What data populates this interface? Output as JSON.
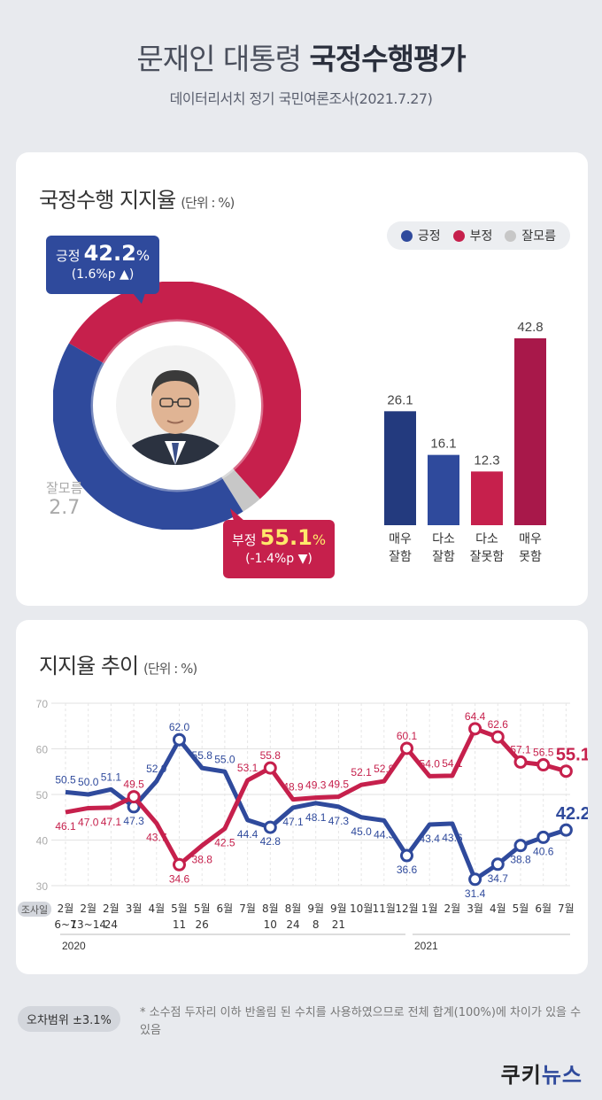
{
  "header": {
    "title_light": "문재인 대통령 ",
    "title_bold": "국정수행평가",
    "subtitle": "데이터리서치 정기 국민여론조사(2021.7.27)"
  },
  "approval_card": {
    "title": "국정수행 지지율",
    "unit": "(단위 : %)",
    "legend": [
      {
        "label": "긍정",
        "color": "#2f4a9c"
      },
      {
        "label": "부정",
        "color": "#c6204c"
      },
      {
        "label": "잘모름",
        "color": "#c7c7c7"
      }
    ],
    "positive": {
      "label": "긍정",
      "value": "42.2",
      "pct": "%",
      "change": "(1.6%p ▲)"
    },
    "negative": {
      "label": "부정",
      "value": "55.1",
      "pct": "%",
      "change": "(-1.4%p ▼)"
    },
    "dontknow": {
      "label": "잘모름",
      "value": "2.7"
    }
  },
  "trend_card": {
    "title": "지지율 추이",
    "unit": "(단위 : %)",
    "survey_label": "조사일"
  },
  "chart_data": [
    {
      "type": "pie",
      "labels": [
        "긍정",
        "부정",
        "잘모름"
      ],
      "values": [
        42.2,
        55.1,
        2.7
      ],
      "colors": [
        "#2f4a9c",
        "#c6204c",
        "#c7c7c7"
      ]
    },
    {
      "type": "bar",
      "categories": [
        "매우\n잘함",
        "다소\n잘함",
        "다소\n잘못함",
        "매우\n못함"
      ],
      "category_lines": [
        [
          "매우",
          "잘함"
        ],
        [
          "다소",
          "잘함"
        ],
        [
          "다소",
          "잘못함"
        ],
        [
          "매우",
          "못함"
        ]
      ],
      "values": [
        26.1,
        16.1,
        12.3,
        42.8
      ],
      "colors": [
        "#233a7e",
        "#2f4a9c",
        "#c6204c",
        "#a8184a"
      ]
    },
    {
      "type": "line",
      "x_top": [
        "2월",
        "2월",
        "2월",
        "3월",
        "4월",
        "5월",
        "5월",
        "6월",
        "7월",
        "8월",
        "8월",
        "9월",
        "9월",
        "10월",
        "11월",
        "12월",
        "1월",
        "2월",
        "3월",
        "4월",
        "5월",
        "6월",
        "7월"
      ],
      "x_bottom": [
        "6~7",
        "13~14",
        "24",
        "",
        "",
        "11",
        "26",
        "",
        "",
        "10",
        "24",
        "8",
        "21",
        "",
        "",
        "",
        "",
        "",
        "",
        "",
        "",
        "",
        ""
      ],
      "year_labels": [
        "2020",
        "2021"
      ],
      "yticks": [
        30,
        40,
        50,
        60,
        70
      ],
      "ylim": [
        30,
        70
      ],
      "series": [
        {
          "name": "긍정",
          "color": "#2f4a9c",
          "values": [
            50.5,
            50.0,
            51.1,
            47.3,
            52.9,
            62.0,
            55.8,
            55.0,
            44.4,
            42.8,
            47.1,
            48.1,
            47.3,
            45.0,
            44.3,
            36.6,
            43.4,
            43.6,
            31.4,
            34.7,
            38.8,
            40.6,
            42.2
          ]
        },
        {
          "name": "부정",
          "color": "#c6204c",
          "values": [
            46.1,
            47.0,
            47.1,
            49.5,
            43.7,
            34.6,
            38.8,
            42.5,
            53.1,
            55.8,
            48.9,
            49.3,
            49.5,
            52.1,
            52.9,
            60.1,
            54.0,
            54.1,
            64.4,
            62.6,
            57.1,
            56.5,
            55.1
          ]
        }
      ],
      "marked_points": [
        3,
        5,
        9,
        15,
        18,
        19,
        20,
        21,
        22
      ]
    }
  ],
  "footer": {
    "error_label": "오차범위 ±3.1%",
    "note": "* 소수점 두자리 이하 반올림 된 수치를 사용하였으므로 전체 합계(100%)에 차이가 있을 수 있음",
    "logo_a": "쿠키",
    "logo_b": "뉴스"
  }
}
